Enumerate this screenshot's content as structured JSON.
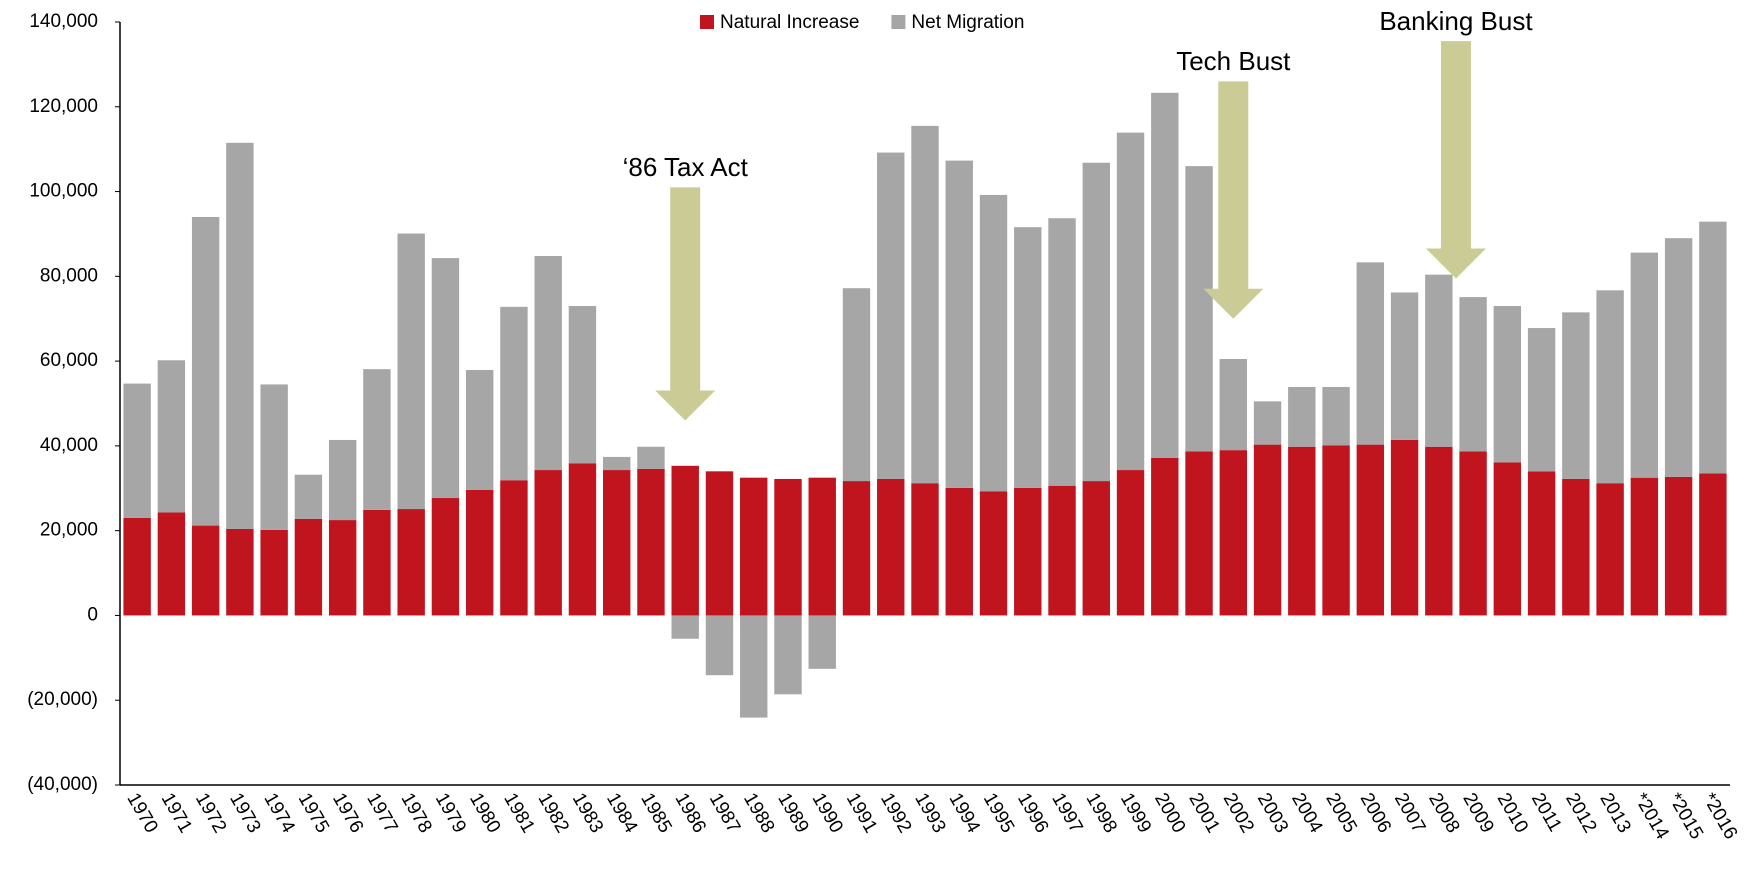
{
  "chart_data": {
    "type": "stacked_bar",
    "categories": [
      "1970",
      "1971",
      "1972",
      "1973",
      "1974",
      "1975",
      "1976",
      "1977",
      "1978",
      "1979",
      "1980",
      "1981",
      "1982",
      "1983",
      "1984",
      "1985",
      "1986",
      "1987",
      "1988",
      "1989",
      "1990",
      "1991",
      "1992",
      "1993",
      "1994",
      "1995",
      "1996",
      "1997",
      "1998",
      "1999",
      "2000",
      "2001",
      "2002",
      "2003",
      "2004",
      "2005",
      "2006",
      "2007",
      "2008",
      "2009",
      "2010",
      "2011",
      "2012",
      "2013",
      "*2014",
      "*2015",
      "*2016"
    ],
    "series": [
      {
        "name": "Natural Increase",
        "color": "#c0141e",
        "values": [
          23000,
          24300,
          21200,
          20400,
          20200,
          22800,
          22500,
          24900,
          25100,
          27700,
          29600,
          31900,
          34300,
          35900,
          34300,
          34600,
          35300,
          34000,
          32500,
          32200,
          32500,
          31700,
          32200,
          31200,
          30100,
          29300,
          30100,
          30600,
          31700,
          34300,
          37200,
          38700,
          39000,
          40300,
          39800,
          40100,
          40300,
          41400,
          39800,
          38700,
          36100,
          34000,
          32200,
          31200,
          32500,
          32700,
          33500
        ]
      },
      {
        "name": "Net Migration",
        "color": "#a6a6a6",
        "values": [
          31700,
          35900,
          72800,
          91100,
          34300,
          10400,
          18900,
          33200,
          65000,
          56600,
          28300,
          40900,
          50500,
          37100,
          3100,
          5200,
          -5500,
          -14100,
          -24100,
          -18600,
          -12600,
          45500,
          77000,
          84300,
          77200,
          69900,
          61500,
          63100,
          75100,
          79600,
          86100,
          67300,
          21500,
          10200,
          14100,
          13800,
          43000,
          34800,
          40600,
          36400,
          36900,
          33800,
          39300,
          45500,
          53100,
          56300,
          59400
        ]
      }
    ],
    "ylim": [
      -40000,
      140000
    ],
    "yticks": [
      {
        "value": -40000,
        "label": "(40,000)"
      },
      {
        "value": -20000,
        "label": "(20,000)"
      },
      0,
      {
        "value": 20000,
        "label": "20,000"
      },
      {
        "value": 40000,
        "label": "40,000"
      },
      {
        "value": 60000,
        "label": "60,000"
      },
      {
        "value": 80000,
        "label": "80,000"
      },
      {
        "value": 100000,
        "label": "100,000"
      },
      {
        "value": 120000,
        "label": "120,000"
      },
      {
        "value": 140000,
        "label": "140,000"
      }
    ],
    "annotations": [
      "‘86 Tax Act",
      "Tech Bust",
      "Banking Bust"
    ],
    "legend": "top"
  }
}
